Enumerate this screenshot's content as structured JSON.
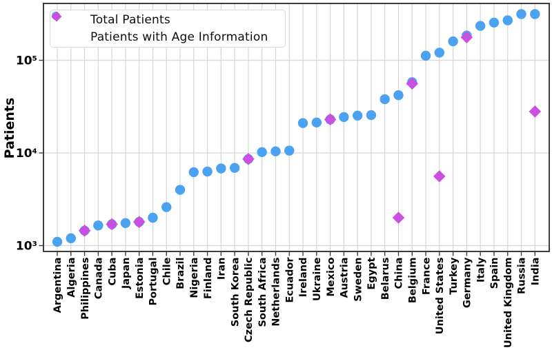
{
  "chart_data": {
    "type": "scatter",
    "title": "",
    "xlabel": "",
    "ylabel": "Patients",
    "y_scale": "log",
    "ylim": [
      800,
      430000
    ],
    "grid": true,
    "legend_position": "top-left",
    "y_ticks": [
      "10³",
      "10⁴",
      "10⁵"
    ],
    "y_tick_values": [
      1000,
      10000,
      100000
    ],
    "categories": [
      "Argentina",
      "Algeria",
      "Philippines",
      "Canada",
      "Cuba",
      "Japan",
      "Estonia",
      "Portugal",
      "Chile",
      "Brazil",
      "Nigeria",
      "Finland",
      "Iran",
      "South Korea",
      "Czech Republic",
      "South Africa",
      "Netherlands",
      "Ecuador",
      "Ireland",
      "Ukraine",
      "Mexico",
      "Austria",
      "Sweden",
      "Egypt",
      "Belarus",
      "China",
      "Belgium",
      "France",
      "United States",
      "Turkey",
      "Germany",
      "Italy",
      "Spain",
      "United Kingdom",
      "Russia",
      "India"
    ],
    "series": [
      {
        "name": "Total Patients",
        "marker": "circle",
        "color": "#4aa2f0",
        "values": [
          1100,
          1200,
          1450,
          1650,
          1700,
          1750,
          1800,
          2000,
          2600,
          4000,
          6200,
          6300,
          6800,
          6900,
          8600,
          10200,
          10400,
          10600,
          21000,
          21300,
          23000,
          24400,
          25300,
          25600,
          38000,
          42000,
          58000,
          112000,
          121000,
          160000,
          185000,
          235000,
          255000,
          270000,
          315000,
          315000
        ]
      },
      {
        "name": "Patients with Age Information",
        "marker": "diamond",
        "color": "#cb4fe0",
        "values": [
          null,
          null,
          1450,
          null,
          1700,
          null,
          1800,
          null,
          null,
          null,
          null,
          null,
          null,
          null,
          8600,
          null,
          null,
          null,
          null,
          null,
          23000,
          null,
          null,
          null,
          null,
          2000,
          56000,
          null,
          5600,
          null,
          177000,
          null,
          null,
          null,
          null,
          28000
        ]
      }
    ]
  },
  "colors": {
    "grid": "#d6d6d6",
    "spine": "#3d3d3d",
    "text": "#000000",
    "background": "#ffffff"
  }
}
